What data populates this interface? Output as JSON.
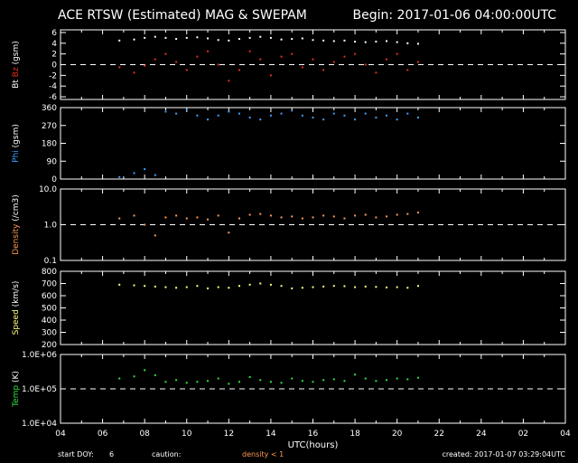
{
  "title": "ACE RTSW (Estimated) MAG & SWEPAM",
  "begin": "Begin: 2017-01-06 04:00:00UTC",
  "footer": {
    "start_doy_label": "start DOY:",
    "start_doy": "6",
    "caution_label": "caution:",
    "caution_text": "density < 1",
    "created": "created: 2017-01-07 03:29:04UTC"
  },
  "colors": {
    "bt": "#ffffff",
    "bz": "#e03020",
    "phi": "#40a0ff",
    "density": "#ff9955",
    "speed": "#ffff80",
    "temp": "#30e040"
  },
  "chart_data": {
    "type": "scatter",
    "x_axis": {
      "label": "UTC(hours)",
      "range": [
        4,
        28
      ],
      "tick_labels": [
        "04",
        "06",
        "08",
        "10",
        "12",
        "14",
        "16",
        "18",
        "20",
        "22",
        "24",
        "02",
        "04"
      ]
    },
    "panels": [
      {
        "id": "mag",
        "ylabel_parts": [
          "Bt",
          "Bz",
          "(gsm)"
        ],
        "ylim": [
          -6.5,
          6.5
        ],
        "scale": "linear",
        "ticks": [
          6,
          4,
          2,
          0,
          -2,
          -4,
          -6
        ],
        "tick_labels": [
          "6",
          "4",
          "2",
          "0",
          "-2",
          "-4",
          "-6"
        ],
        "dashed_at": 0,
        "series": [
          {
            "name": "Bt",
            "color_key": "bt",
            "x": [
              6.8,
              7.5,
              8.0,
              8.5,
              9.0,
              9.5,
              10.0,
              10.5,
              11.0,
              11.5,
              12.0,
              12.5,
              13.0,
              13.5,
              14.0,
              14.5,
              15.0,
              15.5,
              16.0,
              16.5,
              17.0,
              17.5,
              18.0,
              18.5,
              19.0,
              19.5,
              20.0,
              20.5,
              21.0
            ],
            "y": [
              4.5,
              4.7,
              5.0,
              5.2,
              5.0,
              4.8,
              5.0,
              5.1,
              4.9,
              4.6,
              4.5,
              4.8,
              5.0,
              5.2,
              5.0,
              4.7,
              4.8,
              4.9,
              4.6,
              4.5,
              4.4,
              4.5,
              4.3,
              4.2,
              4.3,
              4.4,
              4.2,
              4.0,
              3.9
            ]
          },
          {
            "name": "Bz",
            "color_key": "bz",
            "x": [
              6.8,
              7.5,
              8.0,
              8.5,
              9.0,
              9.5,
              10.0,
              10.5,
              11.0,
              11.5,
              12.0,
              12.5,
              13.0,
              13.5,
              14.0,
              14.5,
              15.0,
              15.5,
              16.0,
              16.5,
              17.0,
              17.5,
              18.0,
              18.5,
              19.0,
              19.5,
              20.0,
              20.5,
              21.0
            ],
            "y": [
              -0.5,
              -1.5,
              -0.2,
              1.0,
              2.0,
              0.5,
              -1.0,
              1.5,
              2.5,
              0.0,
              -3.0,
              -1.0,
              2.5,
              1.0,
              -2.0,
              1.5,
              2.0,
              -0.5,
              1.0,
              -1.0,
              0.5,
              1.5,
              2.0,
              0.0,
              -1.5,
              1.0,
              2.0,
              -1.0,
              0.5
            ]
          }
        ]
      },
      {
        "id": "phi",
        "ylabel_parts": [
          "Phi",
          "(gsm)"
        ],
        "ylim": [
          0,
          360
        ],
        "scale": "linear",
        "ticks": [
          360,
          270,
          180,
          90,
          0
        ],
        "tick_labels": [
          "360",
          "270",
          "180",
          "90",
          "0"
        ],
        "series": [
          {
            "name": "Phi",
            "color_key": "phi",
            "x": [
              6.8,
              7.5,
              8.0,
              8.5,
              9.0,
              9.5,
              10.0,
              10.5,
              11.0,
              11.5,
              12.0,
              12.5,
              13.0,
              13.5,
              14.0,
              14.5,
              15.0,
              15.5,
              16.0,
              16.5,
              17.0,
              17.5,
              18.0,
              18.5,
              19.0,
              19.5,
              20.0,
              20.5,
              21.0
            ],
            "y": [
              10,
              30,
              50,
              20,
              340,
              330,
              350,
              320,
              300,
              320,
              340,
              330,
              310,
              300,
              320,
              330,
              345,
              320,
              310,
              300,
              330,
              320,
              300,
              330,
              310,
              320,
              300,
              330,
              310
            ]
          }
        ]
      },
      {
        "id": "density",
        "ylabel_parts": [
          "Density",
          "(/cm3)"
        ],
        "ylim": [
          0.1,
          10
        ],
        "scale": "log",
        "ticks": [
          10,
          1,
          0.1
        ],
        "tick_labels": [
          "10.0",
          "1.0",
          "0.1"
        ],
        "dashed_at": 1,
        "series": [
          {
            "name": "Density",
            "color_key": "density",
            "x": [
              6.8,
              7.5,
              8.0,
              8.5,
              9.0,
              9.5,
              10.0,
              10.5,
              11.0,
              11.5,
              12.0,
              12.5,
              13.0,
              13.5,
              14.0,
              14.5,
              15.0,
              15.5,
              16.0,
              16.5,
              17.0,
              17.5,
              18.0,
              18.5,
              19.0,
              19.5,
              20.0,
              20.5,
              21.0
            ],
            "y": [
              1.5,
              1.8,
              1.0,
              0.5,
              1.6,
              1.8,
              1.5,
              1.6,
              1.4,
              1.8,
              0.6,
              1.5,
              1.9,
              2.0,
              1.8,
              1.6,
              1.7,
              1.5,
              1.6,
              1.8,
              1.7,
              1.5,
              1.8,
              1.9,
              1.6,
              1.7,
              1.9,
              2.0,
              2.2
            ]
          }
        ]
      },
      {
        "id": "speed",
        "ylabel_parts": [
          "Speed",
          "(km/s)"
        ],
        "ylim": [
          200,
          800
        ],
        "scale": "linear",
        "ticks": [
          800,
          700,
          600,
          500,
          400,
          300,
          200
        ],
        "tick_labels": [
          "800",
          "700",
          "600",
          "500",
          "400",
          "300",
          "200"
        ],
        "series": [
          {
            "name": "Speed",
            "color_key": "speed",
            "x": [
              6.8,
              7.5,
              8.0,
              8.5,
              9.0,
              9.5,
              10.0,
              10.5,
              11.0,
              11.5,
              12.0,
              12.5,
              13.0,
              13.5,
              14.0,
              14.5,
              15.0,
              15.5,
              16.0,
              16.5,
              17.0,
              17.5,
              18.0,
              18.5,
              19.0,
              19.5,
              20.0,
              20.5,
              21.0
            ],
            "y": [
              690,
              685,
              680,
              675,
              670,
              665,
              670,
              680,
              660,
              670,
              665,
              680,
              690,
              700,
              690,
              680,
              660,
              665,
              670,
              675,
              680,
              678,
              670,
              675,
              672,
              668,
              670,
              665,
              680
            ]
          }
        ]
      },
      {
        "id": "temp",
        "ylabel_parts": [
          "Temp",
          "(K)"
        ],
        "ylim": [
          10000,
          1000000
        ],
        "scale": "log",
        "ticks": [
          1000000,
          100000,
          10000
        ],
        "tick_labels": [
          "1.0E+06",
          "1.0E+05",
          "1.0E+04"
        ],
        "dashed_at": 100000,
        "series": [
          {
            "name": "Temp",
            "color_key": "temp",
            "x": [
              6.8,
              7.5,
              8.0,
              8.5,
              9.0,
              9.5,
              10.0,
              10.5,
              11.0,
              11.5,
              12.0,
              12.5,
              13.0,
              13.5,
              14.0,
              14.5,
              15.0,
              15.5,
              16.0,
              16.5,
              17.0,
              17.5,
              18.0,
              18.5,
              19.0,
              19.5,
              20.0,
              20.5,
              21.0
            ],
            "y": [
              200000,
              230000,
              350000,
              250000,
              160000,
              180000,
              150000,
              160000,
              170000,
              200000,
              140000,
              160000,
              220000,
              180000,
              160000,
              150000,
              200000,
              170000,
              160000,
              180000,
              190000,
              170000,
              260000,
              200000,
              170000,
              180000,
              200000,
              190000,
              210000
            ]
          }
        ]
      }
    ]
  }
}
